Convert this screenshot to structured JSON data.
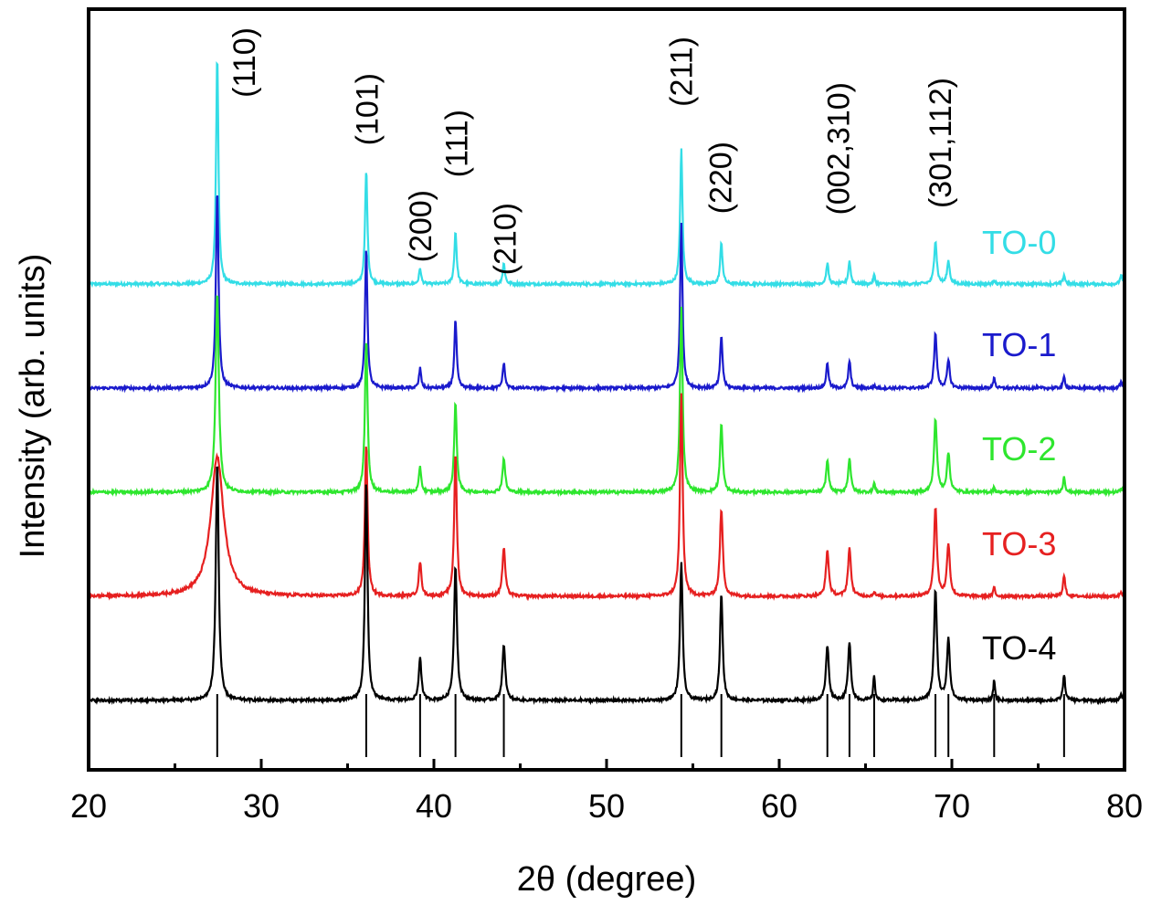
{
  "chart_data": {
    "type": "line",
    "title": "",
    "xlabel": "2θ (degree)",
    "ylabel": "Intensity (arb. units)",
    "xlim": [
      20,
      80
    ],
    "x_ticks": [
      "20",
      "30",
      "40",
      "50",
      "60",
      "70",
      "80"
    ],
    "x_tick_values": [
      20,
      30,
      40,
      50,
      60,
      70,
      80
    ],
    "x_minor_ticks": [
      25,
      35,
      45,
      55,
      65,
      75
    ],
    "grid": false,
    "legend": "right, labels placed next to each trace",
    "hkl_annotations": [
      {
        "label": "(110)",
        "x": 29.0
      },
      {
        "label": "(101)",
        "x": 36.1
      },
      {
        "label": "(200)",
        "x": 39.2
      },
      {
        "label": "(111)",
        "x": 41.3
      },
      {
        "label": "(210)",
        "x": 44.1
      },
      {
        "label": "(211)",
        "x": 54.3
      },
      {
        "label": "(220)",
        "x": 56.6
      },
      {
        "label": "(002,310)",
        "x": 63.4
      },
      {
        "label": "(301,112)",
        "x": 69.3
      }
    ],
    "reference_lines": [
      27.45,
      36.08,
      39.2,
      41.25,
      44.05,
      54.33,
      56.65,
      62.79,
      64.07,
      65.5,
      69.05,
      69.8,
      72.45,
      76.5
    ],
    "series": [
      {
        "name": "TO-0",
        "color": "#33dde6",
        "peaks": [
          {
            "x": 27.45,
            "h": 1.0,
            "w": 0.08
          },
          {
            "x": 36.08,
            "h": 0.5,
            "w": 0.08
          },
          {
            "x": 39.2,
            "h": 0.07,
            "w": 0.07
          },
          {
            "x": 41.25,
            "h": 0.23,
            "w": 0.08
          },
          {
            "x": 44.05,
            "h": 0.09,
            "w": 0.08
          },
          {
            "x": 54.33,
            "h": 0.59,
            "w": 0.08
          },
          {
            "x": 56.65,
            "h": 0.18,
            "w": 0.08
          },
          {
            "x": 62.79,
            "h": 0.09,
            "w": 0.08
          },
          {
            "x": 64.07,
            "h": 0.1,
            "w": 0.08
          },
          {
            "x": 65.5,
            "h": 0.04,
            "w": 0.06
          },
          {
            "x": 69.05,
            "h": 0.19,
            "w": 0.09
          },
          {
            "x": 69.8,
            "h": 0.1,
            "w": 0.09
          },
          {
            "x": 72.45,
            "h": 0.02,
            "w": 0.06
          },
          {
            "x": 76.5,
            "h": 0.04,
            "w": 0.07
          },
          {
            "x": 79.8,
            "h": 0.04,
            "w": 0.07
          }
        ]
      },
      {
        "name": "TO-1",
        "color": "#1a1acc",
        "peaks": [
          {
            "x": 27.45,
            "h": 0.87,
            "w": 0.09
          },
          {
            "x": 36.08,
            "h": 0.62,
            "w": 0.08
          },
          {
            "x": 39.2,
            "h": 0.09,
            "w": 0.07
          },
          {
            "x": 41.25,
            "h": 0.3,
            "w": 0.08
          },
          {
            "x": 44.05,
            "h": 0.11,
            "w": 0.08
          },
          {
            "x": 54.33,
            "h": 0.73,
            "w": 0.08
          },
          {
            "x": 56.65,
            "h": 0.23,
            "w": 0.08
          },
          {
            "x": 62.79,
            "h": 0.11,
            "w": 0.08
          },
          {
            "x": 64.07,
            "h": 0.12,
            "w": 0.08
          },
          {
            "x": 65.5,
            "h": 0.01,
            "w": 0.06
          },
          {
            "x": 69.05,
            "h": 0.24,
            "w": 0.09
          },
          {
            "x": 69.8,
            "h": 0.12,
            "w": 0.09
          },
          {
            "x": 72.45,
            "h": 0.05,
            "w": 0.06
          },
          {
            "x": 76.5,
            "h": 0.05,
            "w": 0.07
          },
          {
            "x": 79.8,
            "h": 0.03,
            "w": 0.07
          }
        ]
      },
      {
        "name": "TO-2",
        "color": "#2ee62e",
        "peaks": [
          {
            "x": 27.45,
            "h": 0.88,
            "w": 0.11
          },
          {
            "x": 36.08,
            "h": 0.67,
            "w": 0.09
          },
          {
            "x": 39.2,
            "h": 0.11,
            "w": 0.08
          },
          {
            "x": 41.25,
            "h": 0.39,
            "w": 0.09
          },
          {
            "x": 44.05,
            "h": 0.15,
            "w": 0.09
          },
          {
            "x": 54.33,
            "h": 0.81,
            "w": 0.09
          },
          {
            "x": 56.65,
            "h": 0.3,
            "w": 0.09
          },
          {
            "x": 62.79,
            "h": 0.14,
            "w": 0.09
          },
          {
            "x": 64.07,
            "h": 0.15,
            "w": 0.09
          },
          {
            "x": 65.5,
            "h": 0.04,
            "w": 0.06
          },
          {
            "x": 69.05,
            "h": 0.32,
            "w": 0.1
          },
          {
            "x": 69.8,
            "h": 0.17,
            "w": 0.1
          },
          {
            "x": 72.45,
            "h": 0.02,
            "w": 0.06
          },
          {
            "x": 76.5,
            "h": 0.07,
            "w": 0.07
          },
          {
            "x": 79.8,
            "h": 0.02,
            "w": 0.07
          }
        ]
      },
      {
        "name": "TO-3",
        "color": "#e62020",
        "peaks": [
          {
            "x": 27.45,
            "h": 0.61,
            "w": 0.45
          },
          {
            "x": 36.08,
            "h": 0.67,
            "w": 0.09
          },
          {
            "x": 39.2,
            "h": 0.15,
            "w": 0.09
          },
          {
            "x": 41.25,
            "h": 0.63,
            "w": 0.09
          },
          {
            "x": 44.05,
            "h": 0.21,
            "w": 0.1
          },
          {
            "x": 54.33,
            "h": 0.89,
            "w": 0.09
          },
          {
            "x": 56.65,
            "h": 0.38,
            "w": 0.1
          },
          {
            "x": 62.79,
            "h": 0.2,
            "w": 0.1
          },
          {
            "x": 64.07,
            "h": 0.21,
            "w": 0.1
          },
          {
            "x": 65.5,
            "h": 0.02,
            "w": 0.06
          },
          {
            "x": 69.05,
            "h": 0.39,
            "w": 0.1
          },
          {
            "x": 69.8,
            "h": 0.23,
            "w": 0.1
          },
          {
            "x": 72.45,
            "h": 0.04,
            "w": 0.06
          },
          {
            "x": 76.5,
            "h": 0.09,
            "w": 0.08
          },
          {
            "x": 79.8,
            "h": 0.02,
            "w": 0.07
          }
        ]
      },
      {
        "name": "TO-4",
        "color": "#000000",
        "peaks": [
          {
            "x": 27.45,
            "h": 1.05,
            "w": 0.1
          },
          {
            "x": 36.08,
            "h": 0.96,
            "w": 0.09
          },
          {
            "x": 39.2,
            "h": 0.19,
            "w": 0.09
          },
          {
            "x": 41.25,
            "h": 0.59,
            "w": 0.1
          },
          {
            "x": 44.05,
            "h": 0.24,
            "w": 0.1
          },
          {
            "x": 54.33,
            "h": 0.61,
            "w": 0.09
          },
          {
            "x": 56.65,
            "h": 0.47,
            "w": 0.09
          },
          {
            "x": 62.79,
            "h": 0.24,
            "w": 0.1
          },
          {
            "x": 64.07,
            "h": 0.25,
            "w": 0.1
          },
          {
            "x": 65.5,
            "h": 0.11,
            "w": 0.06
          },
          {
            "x": 69.05,
            "h": 0.48,
            "w": 0.1
          },
          {
            "x": 69.8,
            "h": 0.27,
            "w": 0.1
          },
          {
            "x": 72.45,
            "h": 0.09,
            "w": 0.06
          },
          {
            "x": 76.5,
            "h": 0.11,
            "w": 0.08
          },
          {
            "x": 79.8,
            "h": 0.03,
            "w": 0.07
          }
        ]
      }
    ]
  }
}
